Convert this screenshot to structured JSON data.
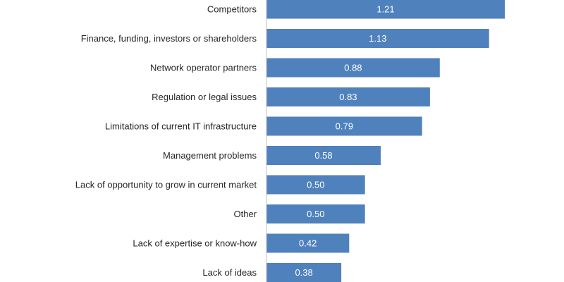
{
  "chart_data": {
    "type": "bar",
    "orientation": "horizontal",
    "title": "",
    "xlabel": "",
    "ylabel": "",
    "categories": [
      "Competitors",
      "Finance, funding, investors or shareholders",
      "Network operator partners",
      "Regulation or legal issues",
      "Limitations of current IT infrastructure",
      "Management problems",
      "Lack of opportunity to grow in current market",
      "Other",
      "Lack of expertise or know-how",
      "Lack of ideas"
    ],
    "values": [
      1.21,
      1.13,
      0.88,
      0.83,
      0.79,
      0.58,
      0.5,
      0.5,
      0.42,
      0.38
    ],
    "value_labels": [
      "1.21",
      "1.13",
      "0.88",
      "0.83",
      "0.79",
      "0.58",
      "0.50",
      "0.50",
      "0.42",
      "0.38"
    ],
    "xlim": [
      0,
      1.21
    ],
    "grid": false,
    "legend": "none",
    "colors": {
      "bar": "#4f81bd",
      "axis": "#bfbfbf",
      "category_text": "#262626",
      "value_text": "#ffffff"
    }
  }
}
